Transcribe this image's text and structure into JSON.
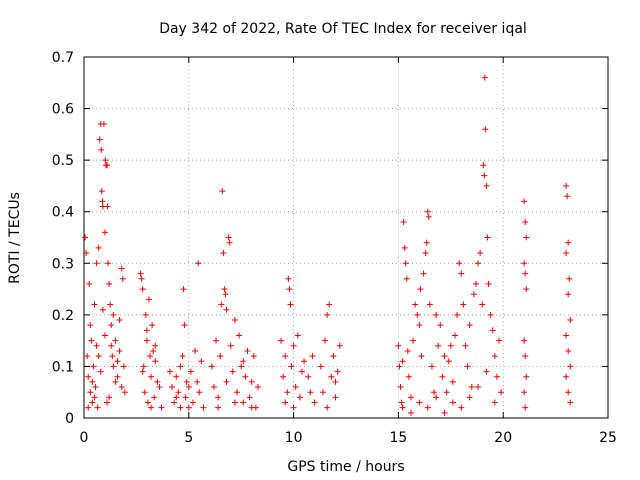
{
  "chart_data": {
    "type": "scatter",
    "title": "Day 342 of 2022, Rate Of TEC Index for receiver iqal",
    "xlabel": "GPS time / hours",
    "ylabel": "ROTI / TECUs",
    "xlim": [
      0,
      25
    ],
    "ylim": [
      0,
      0.7
    ],
    "xticks": [
      "0",
      "5",
      "10",
      "15",
      "20",
      "25"
    ],
    "yticks": [
      "0",
      "0.1",
      "0.2",
      "0.3",
      "0.4",
      "0.5",
      "0.6",
      "0.7"
    ],
    "grid": true,
    "marker": "plus",
    "color": "#ff0000",
    "series": [
      {
        "points": [
          [
            0.05,
            0.35
          ],
          [
            0.1,
            0.32
          ],
          [
            0.15,
            0.12
          ],
          [
            0.2,
            0.08
          ],
          [
            0.25,
            0.26
          ],
          [
            0.3,
            0.05
          ],
          [
            0.35,
            0.15
          ],
          [
            0.4,
            0.03
          ],
          [
            0.45,
            0.1
          ],
          [
            0.5,
            0.22
          ],
          [
            0.55,
            0.06
          ],
          [
            0.6,
            0.3
          ],
          [
            0.65,
            0.02
          ],
          [
            0.7,
            0.33
          ],
          [
            0.75,
            0.54
          ],
          [
            0.8,
            0.57
          ],
          [
            0.82,
            0.52
          ],
          [
            0.85,
            0.44
          ],
          [
            0.88,
            0.42
          ],
          [
            0.9,
            0.41
          ],
          [
            0.95,
            0.57
          ],
          [
            1.0,
            0.36
          ],
          [
            1.02,
            0.5
          ],
          [
            1.05,
            0.49
          ],
          [
            1.1,
            0.49
          ],
          [
            1.12,
            0.41
          ],
          [
            1.15,
            0.3
          ],
          [
            1.2,
            0.26
          ],
          [
            1.25,
            0.22
          ],
          [
            1.3,
            0.18
          ],
          [
            1.35,
            0.12
          ],
          [
            1.4,
            0.1
          ],
          [
            1.5,
            0.15
          ],
          [
            1.6,
            0.08
          ],
          [
            1.7,
            0.19
          ],
          [
            1.8,
            0.29
          ],
          [
            1.85,
            0.27
          ],
          [
            1.9,
            0.1
          ],
          [
            1.95,
            0.05
          ],
          [
            0.2,
            0.02
          ],
          [
            0.4,
            0.07
          ],
          [
            0.6,
            0.14
          ],
          [
            0.8,
            0.09
          ],
          [
            1.0,
            0.16
          ],
          [
            1.2,
            0.04
          ],
          [
            1.4,
            0.2
          ],
          [
            1.6,
            0.11
          ],
          [
            1.8,
            0.06
          ],
          [
            0.3,
            0.18
          ],
          [
            0.5,
            0.04
          ],
          [
            0.7,
            0.12
          ],
          [
            0.9,
            0.21
          ],
          [
            1.1,
            0.03
          ],
          [
            1.3,
            0.14
          ],
          [
            1.5,
            0.07
          ],
          [
            1.7,
            0.13
          ],
          [
            2.7,
            0.28
          ],
          [
            2.75,
            0.27
          ],
          [
            2.8,
            0.25
          ],
          [
            2.85,
            0.1
          ],
          [
            2.9,
            0.05
          ],
          [
            2.95,
            0.2
          ],
          [
            3.0,
            0.15
          ],
          [
            3.05,
            0.03
          ],
          [
            3.1,
            0.23
          ],
          [
            3.15,
            0.12
          ],
          [
            3.2,
            0.08
          ],
          [
            3.25,
            0.18
          ],
          [
            3.3,
            0.13
          ],
          [
            3.35,
            0.04
          ],
          [
            3.4,
            0.11
          ],
          [
            3.5,
            0.07
          ],
          [
            3.6,
            0.06
          ],
          [
            3.7,
            0.02
          ],
          [
            2.8,
            0.09
          ],
          [
            3.0,
            0.17
          ],
          [
            3.2,
            0.02
          ],
          [
            3.4,
            0.14
          ],
          [
            4.1,
            0.09
          ],
          [
            4.2,
            0.06
          ],
          [
            4.3,
            0.03
          ],
          [
            4.4,
            0.08
          ],
          [
            4.5,
            0.05
          ],
          [
            4.6,
            0.1
          ],
          [
            4.7,
            0.12
          ],
          [
            4.75,
            0.25
          ],
          [
            4.8,
            0.18
          ],
          [
            4.85,
            0.04
          ],
          [
            4.9,
            0.07
          ],
          [
            5.0,
            0.02
          ],
          [
            5.1,
            0.09
          ],
          [
            5.2,
            0.03
          ],
          [
            5.3,
            0.13
          ],
          [
            5.4,
            0.07
          ],
          [
            5.45,
            0.3
          ],
          [
            5.5,
            0.05
          ],
          [
            5.6,
            0.11
          ],
          [
            5.7,
            0.02
          ],
          [
            4.4,
            0.04
          ],
          [
            4.6,
            0.02
          ],
          [
            5.0,
            0.06
          ],
          [
            6.1,
            0.1
          ],
          [
            6.2,
            0.06
          ],
          [
            6.3,
            0.15
          ],
          [
            6.4,
            0.04
          ],
          [
            6.5,
            0.12
          ],
          [
            6.55,
            0.22
          ],
          [
            6.6,
            0.44
          ],
          [
            6.65,
            0.32
          ],
          [
            6.7,
            0.25
          ],
          [
            6.75,
            0.24
          ],
          [
            6.8,
            0.21
          ],
          [
            6.9,
            0.35
          ],
          [
            6.95,
            0.34
          ],
          [
            7.0,
            0.14
          ],
          [
            7.1,
            0.09
          ],
          [
            7.2,
            0.19
          ],
          [
            7.3,
            0.05
          ],
          [
            7.4,
            0.16
          ],
          [
            7.5,
            0.1
          ],
          [
            7.6,
            0.03
          ],
          [
            7.7,
            0.08
          ],
          [
            7.8,
            0.13
          ],
          [
            7.9,
            0.04
          ],
          [
            8.0,
            0.07
          ],
          [
            8.1,
            0.12
          ],
          [
            8.2,
            0.02
          ],
          [
            8.3,
            0.06
          ],
          [
            6.4,
            0.02
          ],
          [
            6.8,
            0.07
          ],
          [
            7.2,
            0.03
          ],
          [
            7.6,
            0.11
          ],
          [
            8.0,
            0.02
          ],
          [
            9.4,
            0.15
          ],
          [
            9.5,
            0.08
          ],
          [
            9.6,
            0.12
          ],
          [
            9.7,
            0.05
          ],
          [
            9.75,
            0.27
          ],
          [
            9.8,
            0.25
          ],
          [
            9.85,
            0.22
          ],
          [
            9.9,
            0.1
          ],
          [
            10.0,
            0.14
          ],
          [
            10.1,
            0.06
          ],
          [
            10.2,
            0.16
          ],
          [
            10.3,
            0.04
          ],
          [
            10.4,
            0.09
          ],
          [
            10.5,
            0.11
          ],
          [
            9.6,
            0.03
          ],
          [
            10.0,
            0.02
          ],
          [
            10.7,
            0.08
          ],
          [
            10.8,
            0.05
          ],
          [
            10.9,
            0.12
          ],
          [
            11.0,
            0.03
          ],
          [
            11.3,
            0.1
          ],
          [
            11.4,
            0.05
          ],
          [
            11.5,
            0.15
          ],
          [
            11.6,
            0.2
          ],
          [
            11.7,
            0.22
          ],
          [
            11.8,
            0.08
          ],
          [
            11.9,
            0.12
          ],
          [
            12.0,
            0.04
          ],
          [
            12.1,
            0.09
          ],
          [
            12.2,
            0.14
          ],
          [
            11.6,
            0.02
          ],
          [
            12.0,
            0.07
          ],
          [
            15.0,
            0.14
          ],
          [
            15.05,
            0.1
          ],
          [
            15.1,
            0.06
          ],
          [
            15.15,
            0.03
          ],
          [
            15.2,
            0.11
          ],
          [
            15.25,
            0.38
          ],
          [
            15.3,
            0.33
          ],
          [
            15.35,
            0.3
          ],
          [
            15.4,
            0.27
          ],
          [
            15.45,
            0.13
          ],
          [
            15.5,
            0.08
          ],
          [
            15.6,
            0.04
          ],
          [
            15.7,
            0.15
          ],
          [
            15.8,
            0.22
          ],
          [
            15.9,
            0.2
          ],
          [
            16.0,
            0.18
          ],
          [
            16.05,
            0.25
          ],
          [
            16.1,
            0.12
          ],
          [
            16.2,
            0.28
          ],
          [
            16.3,
            0.32
          ],
          [
            16.35,
            0.34
          ],
          [
            16.4,
            0.4
          ],
          [
            16.45,
            0.39
          ],
          [
            16.5,
            0.22
          ],
          [
            16.6,
            0.1
          ],
          [
            16.7,
            0.05
          ],
          [
            16.8,
            0.2
          ],
          [
            16.9,
            0.14
          ],
          [
            17.0,
            0.18
          ],
          [
            17.1,
            0.08
          ],
          [
            17.2,
            0.12
          ],
          [
            17.3,
            0.05
          ],
          [
            17.4,
            0.11
          ],
          [
            17.5,
            0.14
          ],
          [
            17.6,
            0.07
          ],
          [
            17.7,
            0.16
          ],
          [
            17.8,
            0.2
          ],
          [
            17.9,
            0.3
          ],
          [
            18.0,
            0.28
          ],
          [
            18.1,
            0.22
          ],
          [
            18.2,
            0.14
          ],
          [
            18.3,
            0.1
          ],
          [
            18.4,
            0.18
          ],
          [
            18.5,
            0.06
          ],
          [
            18.6,
            0.24
          ],
          [
            18.7,
            0.26
          ],
          [
            18.8,
            0.3
          ],
          [
            18.9,
            0.32
          ],
          [
            19.0,
            0.22
          ],
          [
            19.05,
            0.49
          ],
          [
            19.1,
            0.47
          ],
          [
            19.12,
            0.66
          ],
          [
            19.15,
            0.56
          ],
          [
            19.2,
            0.45
          ],
          [
            19.25,
            0.35
          ],
          [
            19.3,
            0.26
          ],
          [
            19.4,
            0.2
          ],
          [
            19.5,
            0.17
          ],
          [
            19.6,
            0.12
          ],
          [
            19.7,
            0.08
          ],
          [
            19.8,
            0.15
          ],
          [
            19.9,
            0.05
          ],
          [
            15.2,
            0.02
          ],
          [
            15.6,
            0.01
          ],
          [
            16.0,
            0.03
          ],
          [
            16.4,
            0.02
          ],
          [
            16.8,
            0.04
          ],
          [
            17.2,
            0.01
          ],
          [
            17.6,
            0.03
          ],
          [
            18.0,
            0.02
          ],
          [
            18.4,
            0.04
          ],
          [
            18.8,
            0.06
          ],
          [
            19.2,
            0.09
          ],
          [
            19.6,
            0.03
          ],
          [
            21.0,
            0.42
          ],
          [
            21.05,
            0.38
          ],
          [
            21.1,
            0.35
          ],
          [
            21.0,
            0.3
          ],
          [
            21.05,
            0.28
          ],
          [
            21.1,
            0.25
          ],
          [
            21.0,
            0.15
          ],
          [
            21.05,
            0.12
          ],
          [
            21.1,
            0.08
          ],
          [
            21.0,
            0.05
          ],
          [
            21.05,
            0.02
          ],
          [
            23.0,
            0.45
          ],
          [
            23.05,
            0.43
          ],
          [
            23.1,
            0.34
          ],
          [
            23.0,
            0.32
          ],
          [
            23.15,
            0.27
          ],
          [
            23.1,
            0.24
          ],
          [
            23.2,
            0.19
          ],
          [
            23.0,
            0.16
          ],
          [
            23.1,
            0.13
          ],
          [
            23.2,
            0.1
          ],
          [
            23.0,
            0.08
          ],
          [
            23.1,
            0.05
          ],
          [
            23.2,
            0.03
          ]
        ]
      }
    ]
  }
}
